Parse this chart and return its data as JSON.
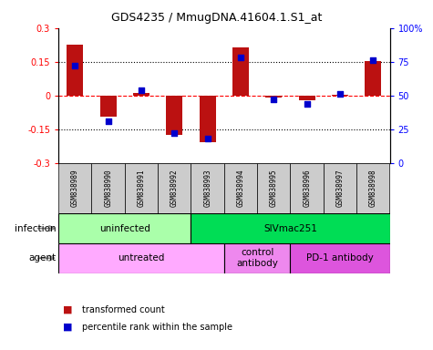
{
  "title": "GDS4235 / MmugDNA.41604.1.S1_at",
  "samples": [
    "GSM838989",
    "GSM838990",
    "GSM838991",
    "GSM838992",
    "GSM838993",
    "GSM838994",
    "GSM838995",
    "GSM838996",
    "GSM838997",
    "GSM838998"
  ],
  "transformed_count": [
    0.225,
    -0.095,
    0.01,
    -0.175,
    -0.21,
    0.215,
    -0.01,
    -0.02,
    0.002,
    0.153
  ],
  "percentile_rank": [
    72,
    31,
    54,
    22,
    18,
    78,
    47,
    44,
    51,
    76
  ],
  "bar_color": "#bb1111",
  "dot_color": "#0000cc",
  "ylim": [
    -0.3,
    0.3
  ],
  "right_ylim": [
    0,
    100
  ],
  "right_yticks": [
    0,
    25,
    50,
    75,
    100
  ],
  "right_yticklabels": [
    "0",
    "25",
    "50",
    "75",
    "100%"
  ],
  "left_yticks": [
    -0.3,
    -0.15,
    0.0,
    0.15,
    0.3
  ],
  "left_yticklabels": [
    "-0.3",
    "-0.15",
    "0",
    "0.15",
    "0.3"
  ],
  "dotted_hlines": [
    0.15,
    -0.15
  ],
  "dashed_hline": 0.0,
  "infection_groups": [
    {
      "label": "uninfected",
      "start": 0,
      "end": 4,
      "color": "#aaffaa"
    },
    {
      "label": "SIVmac251",
      "start": 4,
      "end": 10,
      "color": "#00dd55"
    }
  ],
  "agent_groups": [
    {
      "label": "untreated",
      "start": 0,
      "end": 5,
      "color": "#ffaaff"
    },
    {
      "label": "control\nantibody",
      "start": 5,
      "end": 7,
      "color": "#ee88ee"
    },
    {
      "label": "PD-1 antibody",
      "start": 7,
      "end": 10,
      "color": "#dd55dd"
    }
  ],
  "legend_items": [
    {
      "label": "transformed count",
      "color": "#bb1111"
    },
    {
      "label": "percentile rank within the sample",
      "color": "#0000cc"
    }
  ],
  "infection_label": "infection",
  "agent_label": "agent",
  "sample_bg_color": "#cccccc",
  "bar_width": 0.5
}
